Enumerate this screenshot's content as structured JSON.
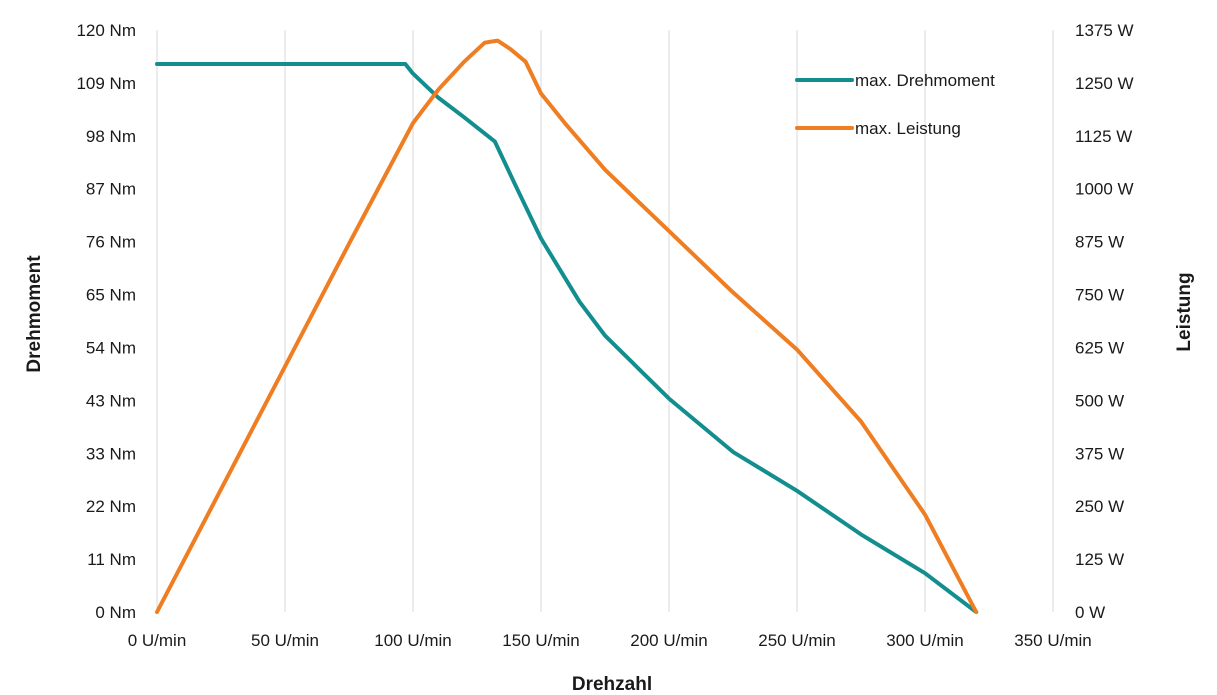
{
  "chart_data": {
    "type": "line",
    "xlabel": "Drehzahl",
    "ylabel_left": "Drehmoment",
    "ylabel_right": "Leistung",
    "x_ticks": [
      "0 U/min",
      "50 U/min",
      "100 U/min",
      "150 U/min",
      "200 U/min",
      "250 U/min",
      "300 U/min",
      "350 U/min"
    ],
    "x_tick_values": [
      0,
      50,
      100,
      150,
      200,
      250,
      300,
      350
    ],
    "xlim": [
      0,
      350
    ],
    "y_left_ticks": [
      "0 Nm",
      "11 Nm",
      "22 Nm",
      "33 Nm",
      "43 Nm",
      "54 Nm",
      "65 Nm",
      "76 Nm",
      "87 Nm",
      "98 Nm",
      "109 Nm",
      "120 Nm"
    ],
    "y_left_lim": [
      0,
      120
    ],
    "y_right_ticks": [
      "0 W",
      "125 W",
      "250 W",
      "375 W",
      "500 W",
      "625 W",
      "750 W",
      "875 W",
      "1000 W",
      "1125 W",
      "1250 W",
      "1375 W"
    ],
    "y_right_lim": [
      0,
      1375
    ],
    "grid": "vertical",
    "legend_position": "top-right",
    "series": [
      {
        "name": "max. Drehmoment",
        "axis": "left",
        "color": "#138e8e",
        "x": [
          0,
          50,
          97,
          100,
          110,
          120,
          132,
          140,
          150,
          165,
          175,
          200,
          225,
          250,
          275,
          300,
          320
        ],
        "y": [
          113,
          113,
          113,
          111,
          106,
          102,
          97,
          88,
          77,
          64,
          57,
          44,
          33,
          25,
          16,
          8,
          0
        ]
      },
      {
        "name": "max. Leistung",
        "axis": "right",
        "color": "#ef7d22",
        "x": [
          0,
          25,
          50,
          75,
          100,
          110,
          120,
          128,
          133,
          138,
          144,
          150,
          160,
          175,
          200,
          225,
          250,
          275,
          300,
          320
        ],
        "y": [
          0,
          290,
          580,
          870,
          1155,
          1235,
          1300,
          1345,
          1350,
          1330,
          1300,
          1225,
          1150,
          1045,
          900,
          755,
          620,
          450,
          230,
          0
        ]
      }
    ]
  }
}
